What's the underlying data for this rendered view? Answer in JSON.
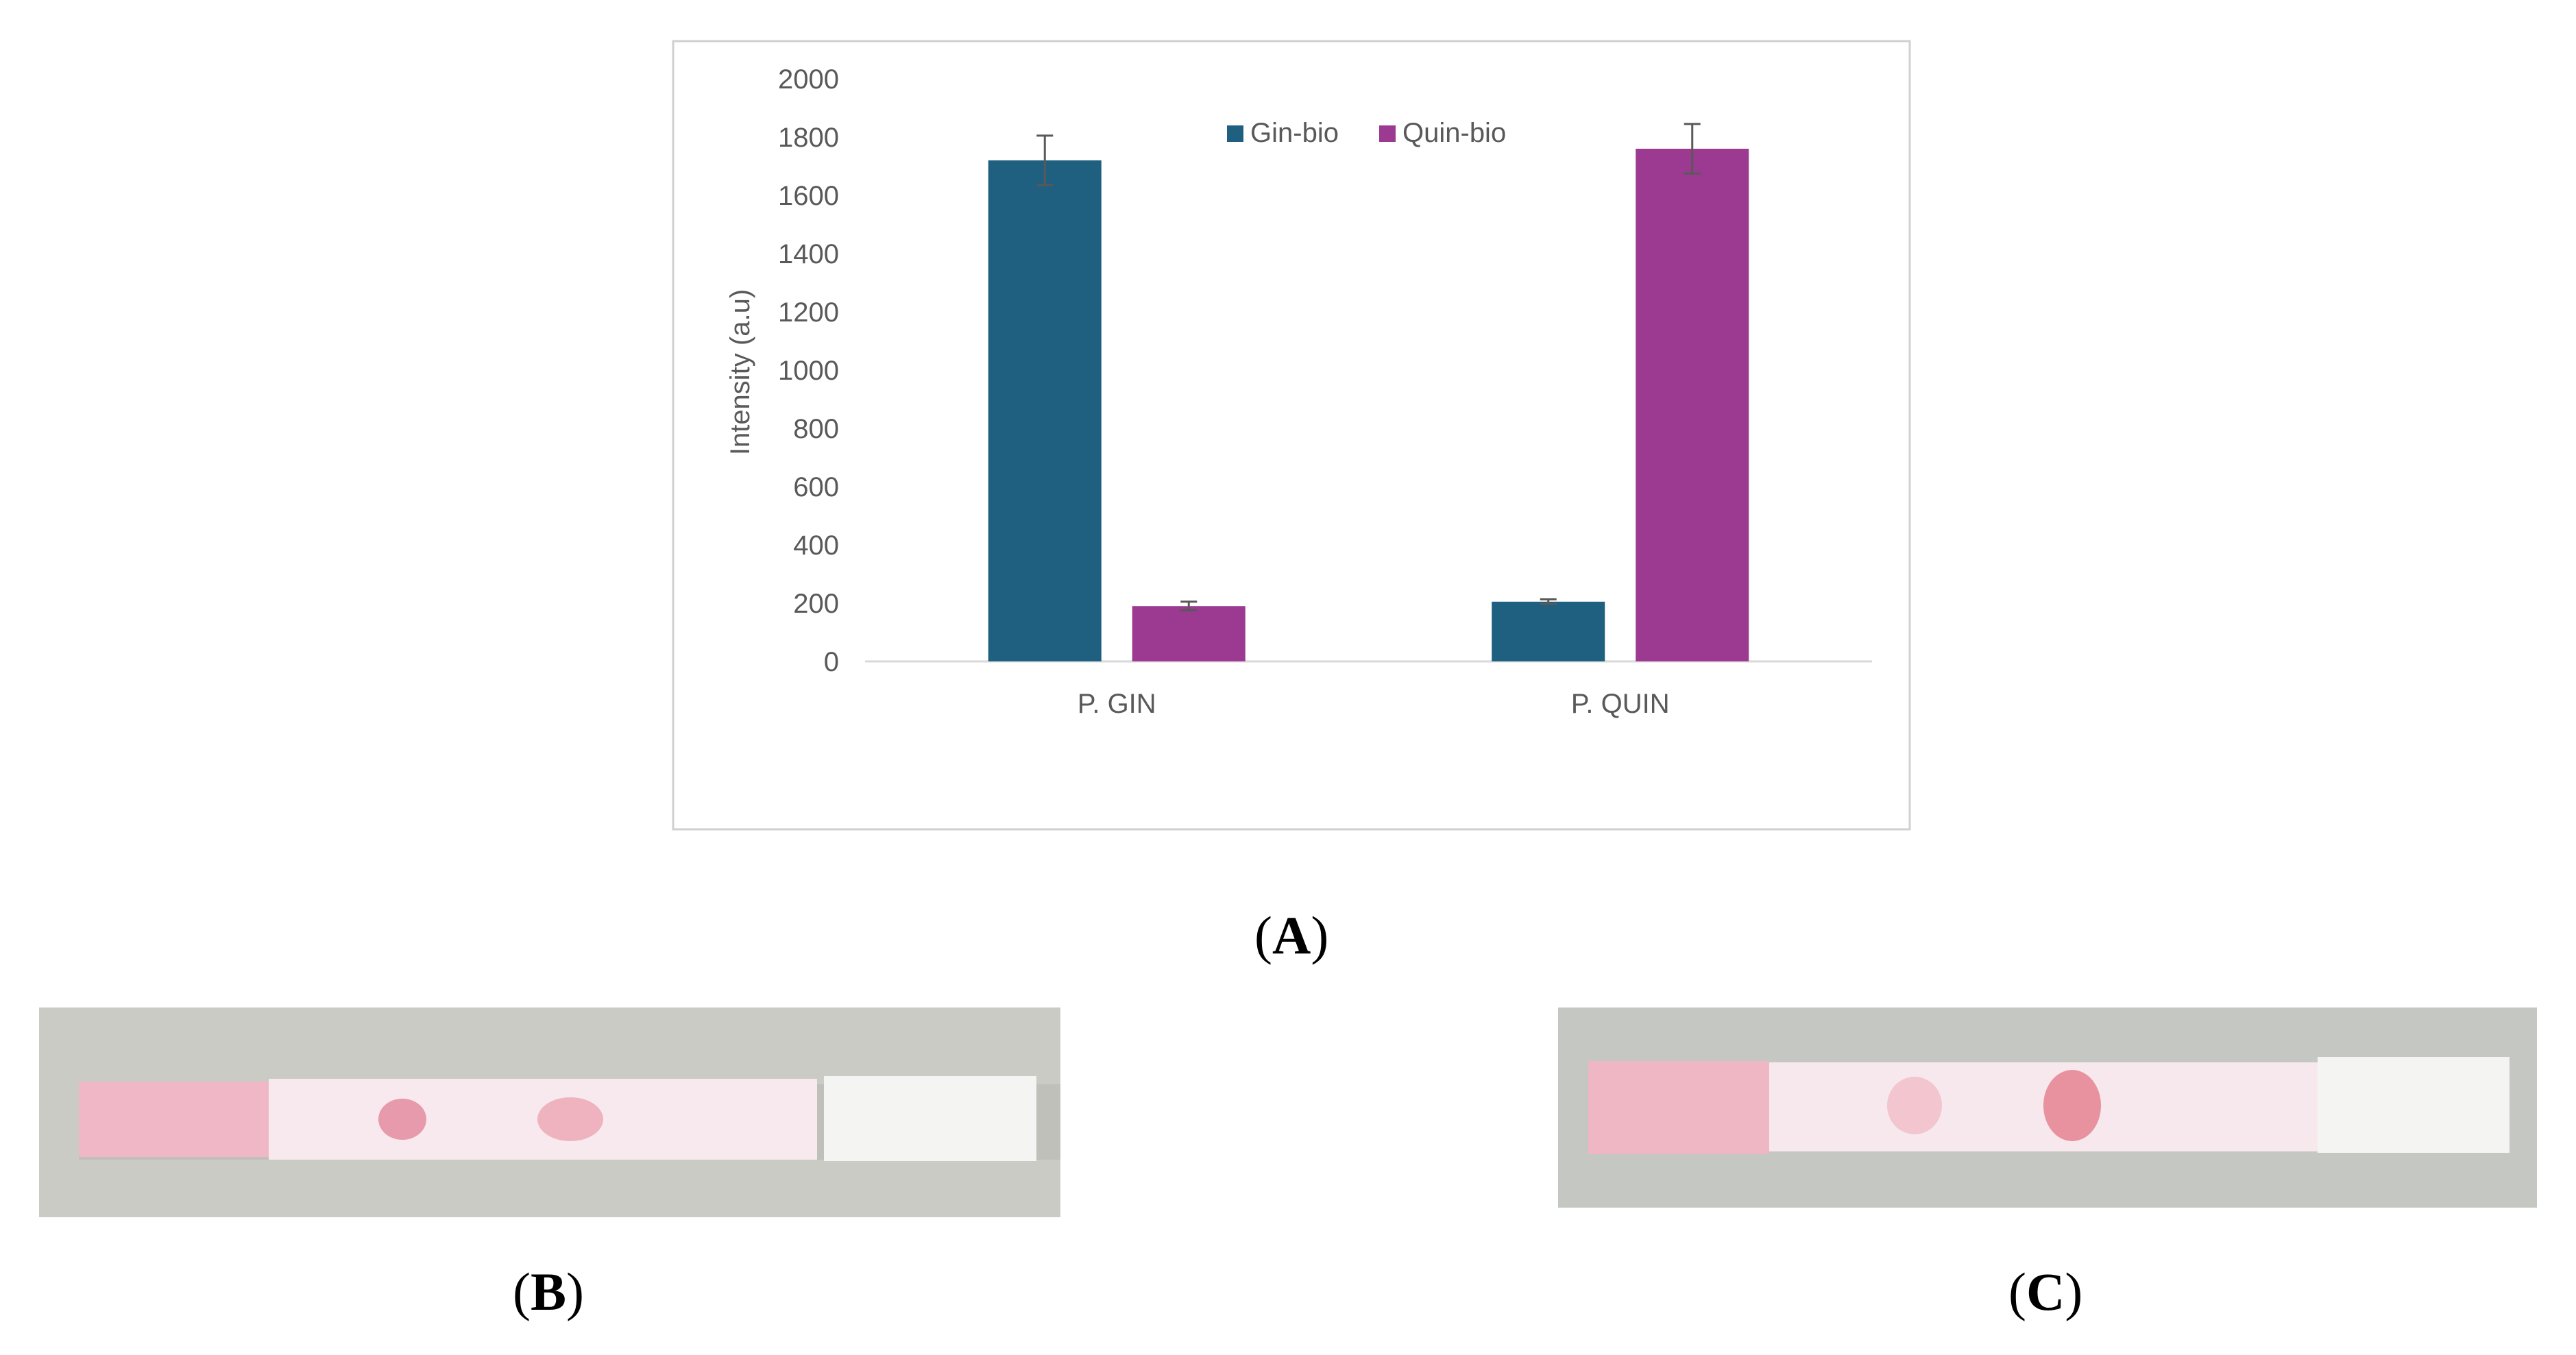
{
  "panels": {
    "a": "A",
    "b": "B",
    "c": "C"
  },
  "chart_data": {
    "type": "bar",
    "title": "",
    "xlabel": "",
    "ylabel": "Intensity (a.u)",
    "ylim": [
      0,
      2000
    ],
    "yticks": [
      0,
      200,
      400,
      600,
      800,
      1000,
      1200,
      1400,
      1600,
      1800,
      2000
    ],
    "grid": false,
    "legend_position": "top-center",
    "categories": [
      "P. GIN",
      "P. QUIN"
    ],
    "series": [
      {
        "name": "Gin-bio",
        "color": "#1f5f80",
        "values": [
          1720,
          205
        ],
        "errors": [
          85,
          8
        ]
      },
      {
        "name": "Quin-bio",
        "color": "#9b3a90",
        "values": [
          190,
          1760
        ],
        "errors": [
          15,
          85
        ]
      }
    ]
  },
  "photos": {
    "b": {
      "description_colors": {
        "background": "#c9cbc4",
        "pad": "#f0b8c6",
        "membrane": "#f7e9ee",
        "line": "#e79aab",
        "absorbent": "#f4f4f2"
      },
      "lines": [
        "test-line",
        "control-line"
      ]
    },
    "c": {
      "description_colors": {
        "background": "#c4c7c2",
        "pad": "#efb6c4",
        "membrane": "#f6e8ec",
        "line": "#e8929f",
        "absorbent": "#f4f4f2"
      },
      "lines": [
        "test-line",
        "control-line"
      ]
    }
  }
}
